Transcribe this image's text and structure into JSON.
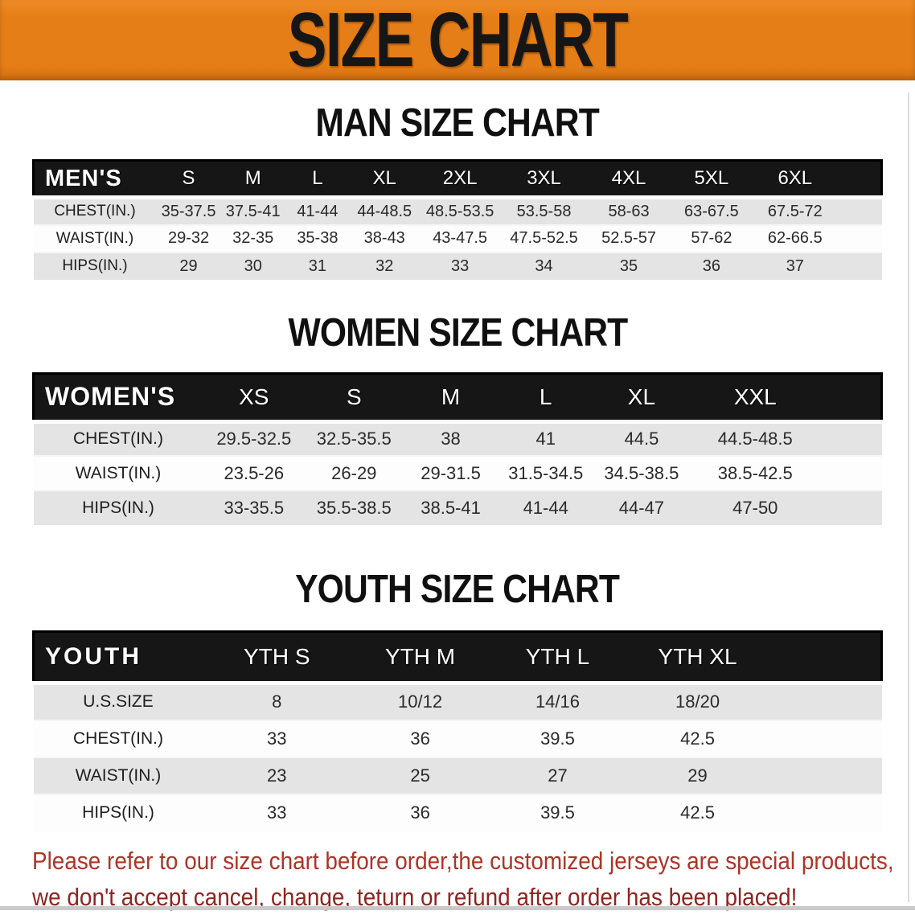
{
  "banner": {
    "title": "SIZE CHART"
  },
  "colors": {
    "banner_orange": "#E67E17",
    "header_bar_black": "#161616",
    "row_gray": "#E4E4E4",
    "notice_red_line1": "#AC3528",
    "notice_red_line2": "#8F241E"
  },
  "sections": [
    {
      "key": "mens",
      "heading": "MAN SIZE CHART",
      "corner": "MEN'S",
      "columns": [
        "S",
        "M",
        "L",
        "XL",
        "2XL",
        "3XL",
        "4XL",
        "5XL",
        "6XL"
      ],
      "rows": [
        {
          "label": "CHEST(IN.)",
          "values": [
            "35-37.5",
            "37.5-41",
            "41-44",
            "44-48.5",
            "48.5-53.5",
            "53.5-58",
            "58-63",
            "63-67.5",
            "67.5-72"
          ]
        },
        {
          "label": "WAIST(IN.)",
          "values": [
            "29-32",
            "32-35",
            "35-38",
            "38-43",
            "43-47.5",
            "47.5-52.5",
            "52.5-57",
            "57-62",
            "62-66.5"
          ]
        },
        {
          "label": "HIPS(IN.)",
          "values": [
            "29",
            "30",
            "31",
            "32",
            "33",
            "34",
            "35",
            "36",
            "37"
          ]
        }
      ]
    },
    {
      "key": "womens",
      "heading": "WOMEN SIZE CHART",
      "corner": "WOMEN'S",
      "columns": [
        "XS",
        "S",
        "M",
        "L",
        "XL",
        "XXL"
      ],
      "rows": [
        {
          "label": "CHEST(IN.)",
          "values": [
            "29.5-32.5",
            "32.5-35.5",
            "38",
            "41",
            "44.5",
            "44.5-48.5"
          ]
        },
        {
          "label": "WAIST(IN.)",
          "values": [
            "23.5-26",
            "26-29",
            "29-31.5",
            "31.5-34.5",
            "34.5-38.5",
            "38.5-42.5"
          ]
        },
        {
          "label": "HIPS(IN.)",
          "values": [
            "33-35.5",
            "35.5-38.5",
            "38.5-41",
            "41-44",
            "44-47",
            "47-50"
          ]
        }
      ]
    },
    {
      "key": "youth",
      "heading": "YOUTH SIZE CHART",
      "corner": "YOUTH",
      "columns": [
        "YTH S",
        "YTH M",
        "YTH L",
        "YTH XL"
      ],
      "rows": [
        {
          "label": "U.S.SIZE",
          "values": [
            "8",
            "10/12",
            "14/16",
            "18/20"
          ]
        },
        {
          "label": "CHEST(IN.)",
          "values": [
            "33",
            "36",
            "39.5",
            "42.5"
          ]
        },
        {
          "label": "WAIST(IN.)",
          "values": [
            "23",
            "25",
            "27",
            "29"
          ]
        },
        {
          "label": "HIPS(IN.)",
          "values": [
            "33",
            "36",
            "39.5",
            "42.5"
          ]
        }
      ]
    }
  ],
  "footer": {
    "lines": [
      "Please refer to our size chart before order,the customized jerseys are special products,",
      "we don't accept cancel, change, teturn or refund after order has been placed!"
    ]
  }
}
